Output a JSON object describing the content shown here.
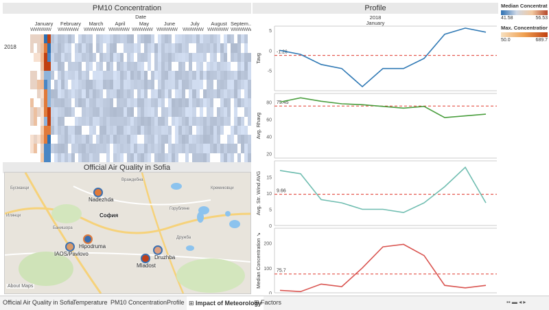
{
  "pm10": {
    "title": "PM10 Concentration",
    "date_label": "Date",
    "year_label": "2018",
    "months": [
      "January",
      "February",
      "March",
      "April",
      "May",
      "June",
      "July",
      "August",
      "Septem.."
    ],
    "week_glyph": "W"
  },
  "map": {
    "title": "Official Air Quality in Sofia",
    "city_label": "София",
    "attribution": "About Maps",
    "stations": [
      {
        "name": "Nadezhda",
        "color": "#e07a3a"
      },
      {
        "name": "Hipodruma",
        "color": "#3a6fb0"
      },
      {
        "name": "IAOS/Pavlovo",
        "color": "#d99a6a"
      },
      {
        "name": "Druzhba",
        "color": "#e0a080"
      },
      {
        "name": "Mladost",
        "color": "#c0401a"
      }
    ],
    "place_labels": [
      "Илянци",
      "Банишора",
      "Дружба",
      "Кремиковци",
      "Бусманци",
      "Горубляне",
      "Враждебна"
    ]
  },
  "profile": {
    "title": "Profile",
    "year_label": "2018",
    "month_label": "January",
    "panels": [
      {
        "ylabel": "Tavg",
        "ref_label": "-1.26",
        "ref": -1.26,
        "color": "#2e78b4",
        "ymin": -10,
        "ymax": 6,
        "ticks": [
          5,
          0,
          -5
        ],
        "values": [
          0,
          -1,
          -3.5,
          -4.5,
          -9,
          -4.5,
          -4.5,
          -2,
          4,
          5.5,
          4.5
        ]
      },
      {
        "ylabel": "Avg. Rhavg",
        "ref_label": "75.45",
        "ref": 75.45,
        "color": "#4a9e3e",
        "ymin": 15,
        "ymax": 90,
        "ticks": [
          80,
          60,
          40,
          20
        ],
        "values": [
          80,
          85,
          81,
          78,
          77,
          75,
          73,
          75,
          62,
          64,
          66
        ]
      },
      {
        "ylabel": "Avg. Str. Wind AVG",
        "ref_label": "9.66",
        "ref": 9.66,
        "color": "#6fbdb0",
        "ymin": 0,
        "ymax": 20,
        "ticks": [
          15,
          10,
          5,
          0
        ],
        "values": [
          17,
          16,
          8,
          7,
          5,
          5,
          4,
          7,
          12,
          18,
          7
        ]
      },
      {
        "ylabel": "Median Concentration ↘",
        "ref_label": "75.7",
        "ref": 75.7,
        "color": "#d9534f",
        "ymin": 0,
        "ymax": 260,
        "ticks": [
          200,
          100,
          0
        ],
        "values": [
          10,
          5,
          35,
          25,
          100,
          185,
          195,
          150,
          30,
          20,
          30
        ]
      }
    ]
  },
  "legend": {
    "median_title": "Median Concentrat..",
    "median_min": "41.58",
    "median_max": "56.53",
    "max_title": "Max. Concentration",
    "max_min": "50.0",
    "max_max": "689.7"
  },
  "tabs": [
    {
      "label": "Official Air Quality in Sofia",
      "active": false
    },
    {
      "label": "Temperature",
      "active": false
    },
    {
      "label": "PM10 Concentration",
      "active": false
    },
    {
      "label": "Profile",
      "active": false
    },
    {
      "label": "Impact of Meteorology",
      "active": true
    },
    {
      "label": "Factors",
      "active": false
    }
  ]
}
